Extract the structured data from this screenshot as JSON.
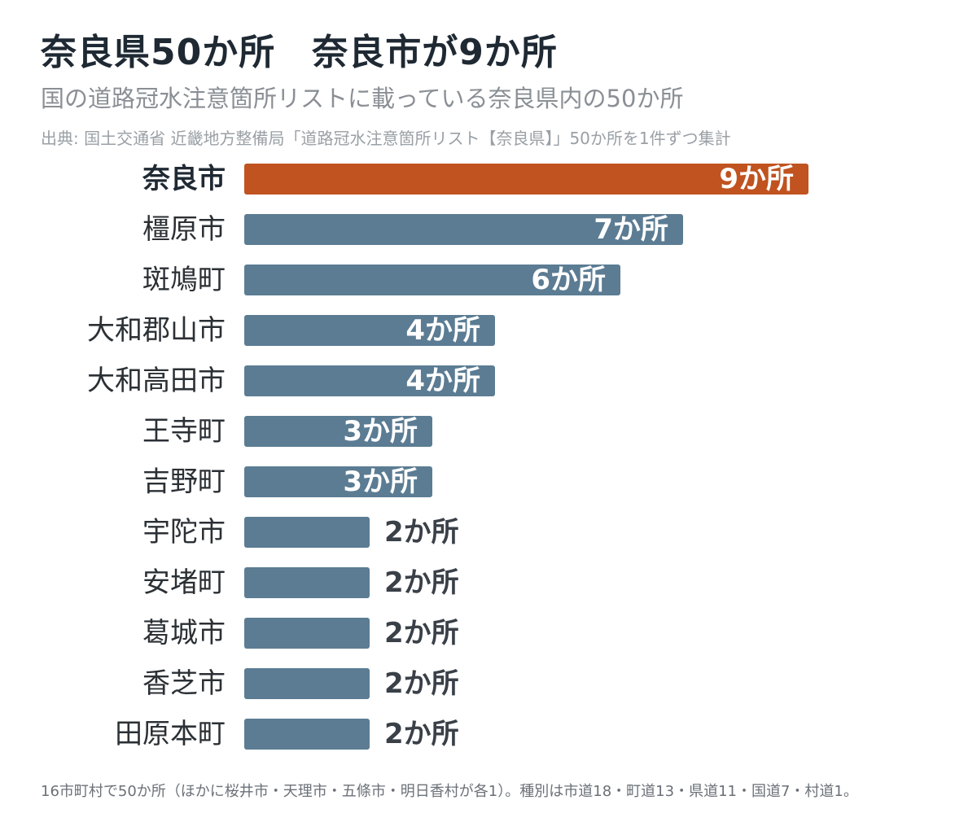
{
  "header": {
    "title": "奈良県50か所　奈良市が9か所",
    "subtitle": "国の道路冠水注意箇所リストに載っている奈良県内の50か所",
    "source": "出典: 国土交通省 近畿地方整備局「道路冠水注意箇所リスト【奈良県】」50か所を1件ずつ集計"
  },
  "footnote": "16市町村で50か所（ほかに桜井市・天理市・五條市・明日香村が各1）。種別は市道18・町道13・県道11・国道7・村道1。",
  "colors": {
    "highlight": "#c0531f",
    "bar": "#5b7c93",
    "label_inside": "#ffffff",
    "label_outside": "#3a4048"
  },
  "chart_data": {
    "type": "bar",
    "orientation": "horizontal",
    "unit_suffix": "か所",
    "highlight_category": "奈良市",
    "categories": [
      "奈良市",
      "橿原市",
      "斑鳩町",
      "大和郡山市",
      "大和高田市",
      "王寺町",
      "吉野町",
      "宇陀市",
      "安堵町",
      "葛城市",
      "香芝市",
      "田原本町"
    ],
    "values": [
      9,
      7,
      6,
      4,
      4,
      3,
      3,
      2,
      2,
      2,
      2,
      2
    ],
    "value_labels": [
      "9か所",
      "7か所",
      "6か所",
      "4か所",
      "4か所",
      "3か所",
      "3か所",
      "2か所",
      "2か所",
      "2か所",
      "2か所",
      "2か所"
    ],
    "xlim": [
      0,
      9
    ],
    "grid": false,
    "legend": "none"
  }
}
